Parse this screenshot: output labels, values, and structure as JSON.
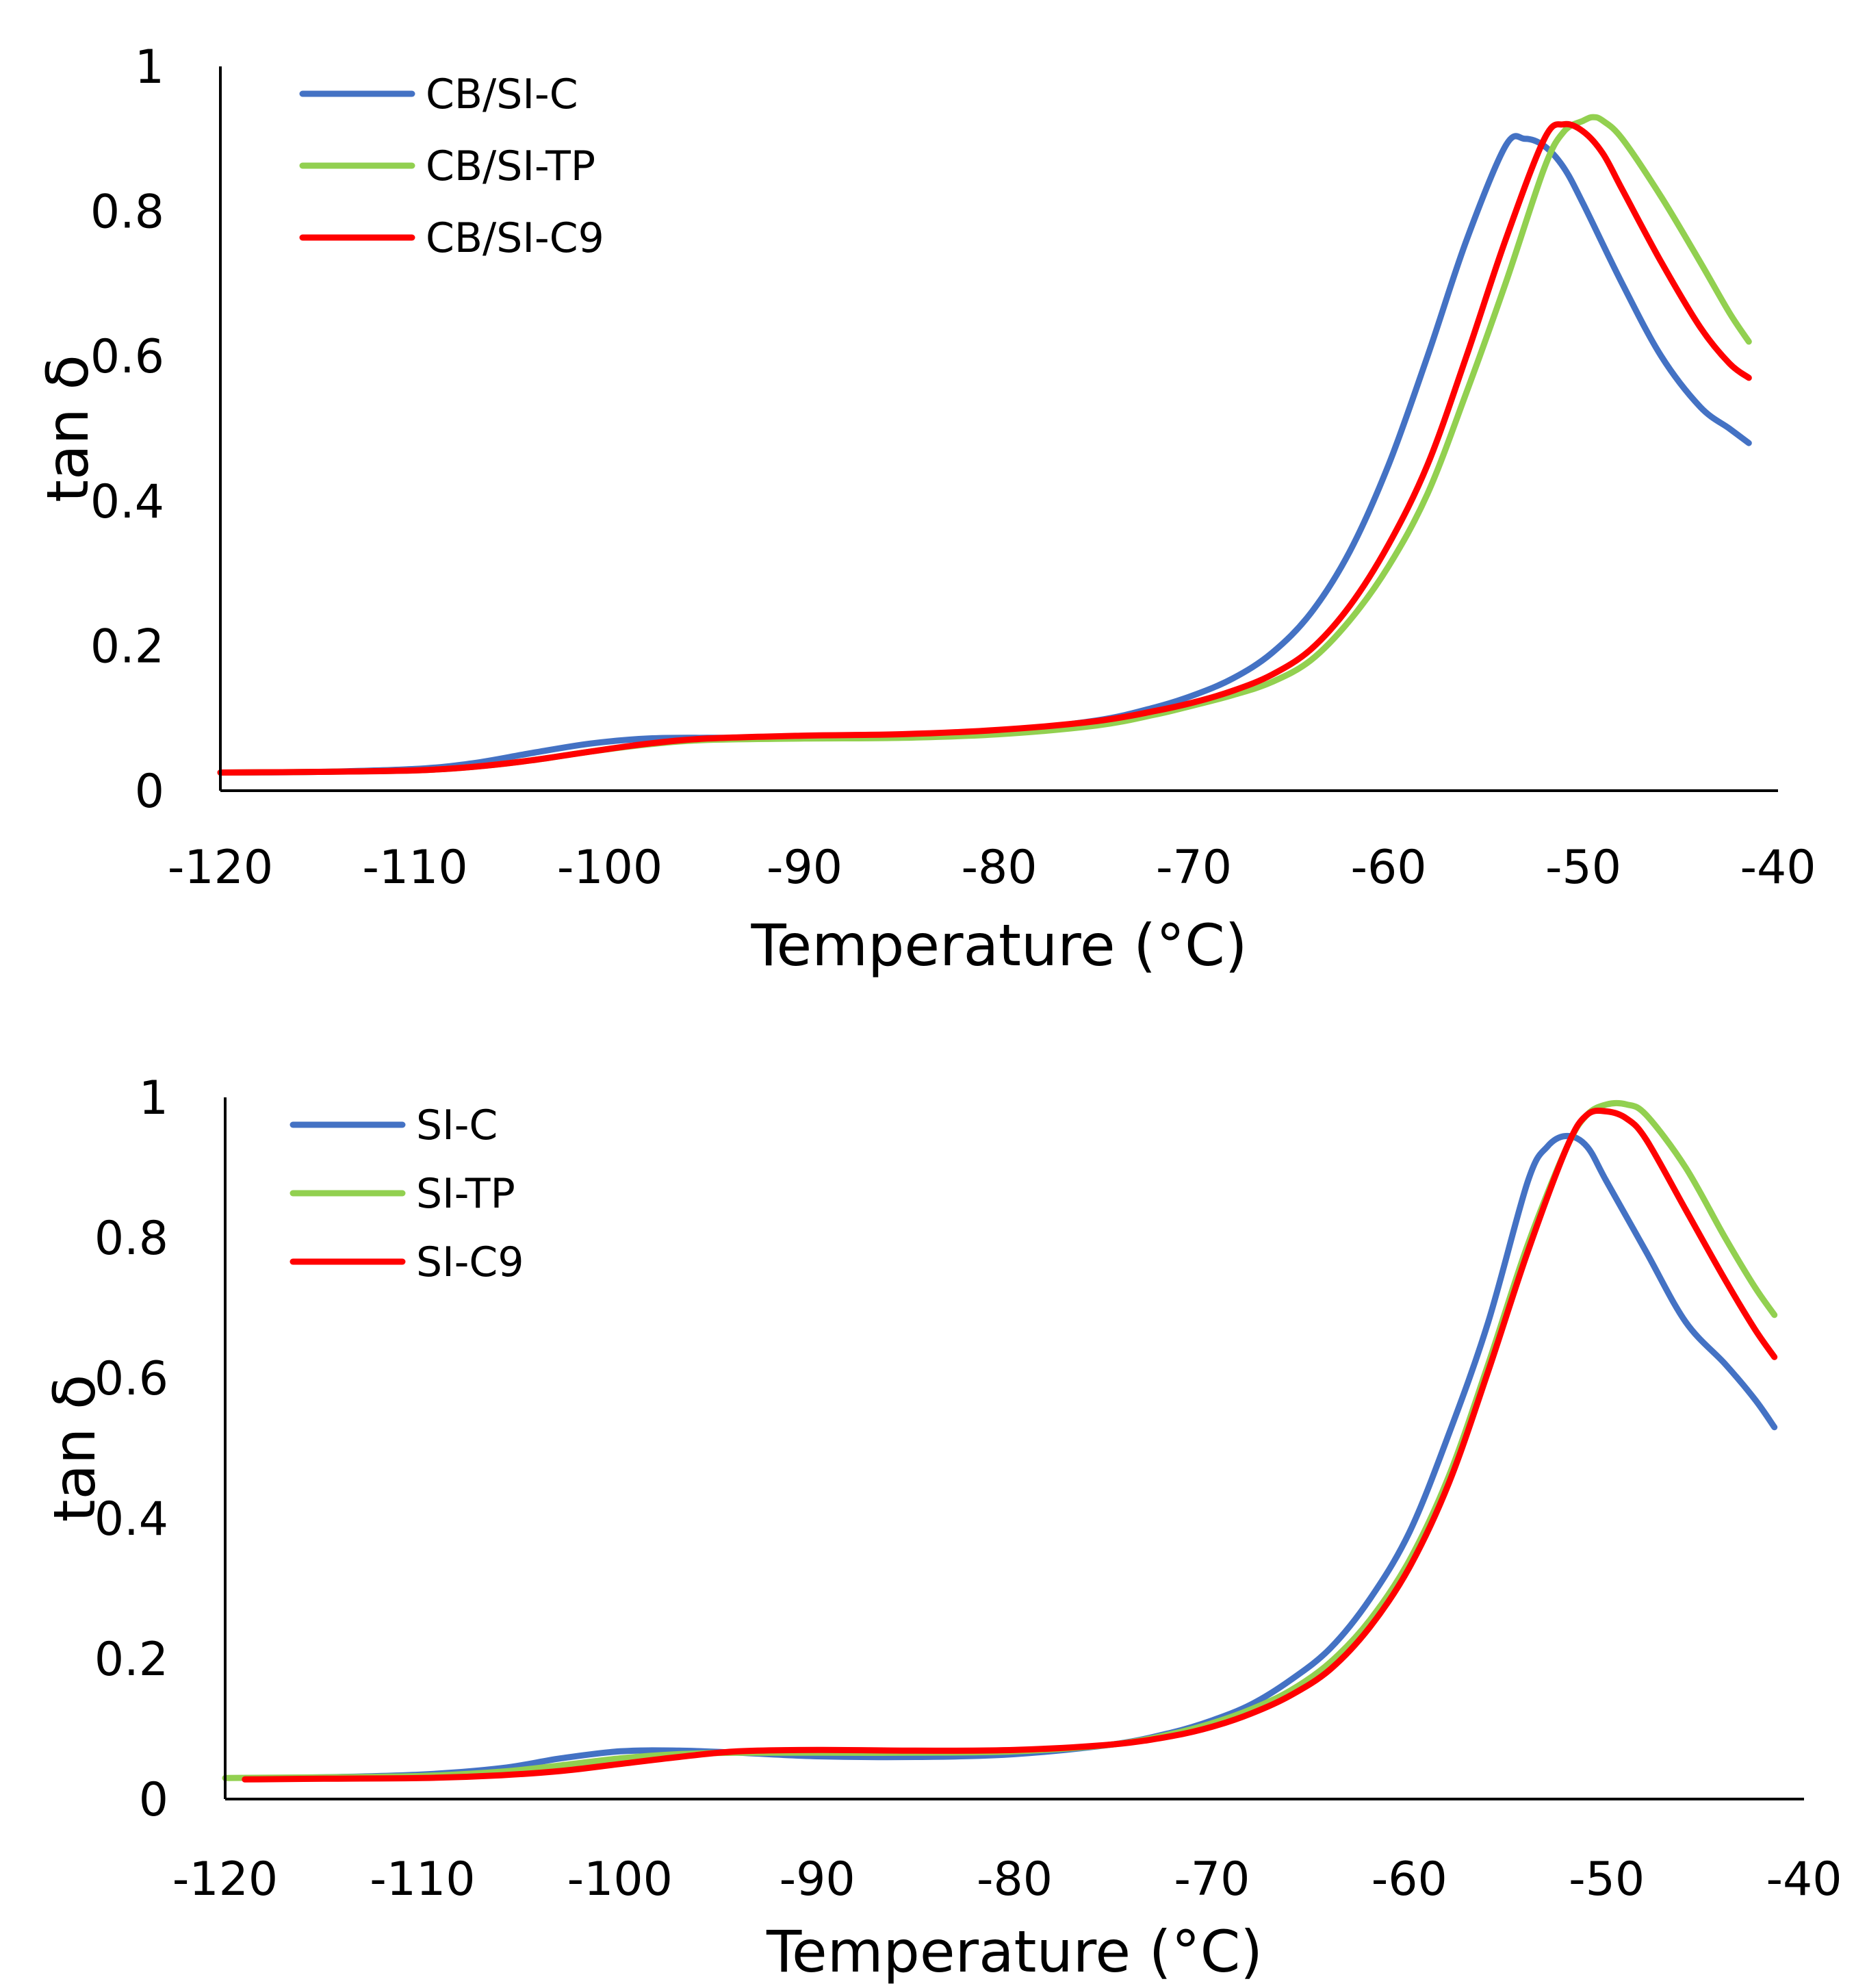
{
  "chart_data": [
    {
      "type": "line",
      "title": "",
      "xlabel": "Temperature (°C)",
      "ylabel": "tan δ",
      "xlim": [
        -120,
        -40
      ],
      "ylim": [
        0,
        1
      ],
      "xticks": [
        "-120",
        "-110",
        "-100",
        "-90",
        "-80",
        "-70",
        "-60",
        "-50",
        "-40"
      ],
      "yticks": [
        "0",
        "0.2",
        "0.4",
        "0.6",
        "0.8",
        "1"
      ],
      "grid": false,
      "legend_position": "top-left",
      "series": [
        {
          "name": "CB/SI-C",
          "color": "#4472C4",
          "x": [
            -120,
            -115,
            -110,
            -107,
            -104,
            -101,
            -98,
            -95,
            -90,
            -85,
            -80,
            -75,
            -72,
            -70,
            -68,
            -66,
            -64,
            -62,
            -60,
            -58,
            -56,
            -54,
            -53,
            -52,
            -51,
            -50,
            -48,
            -46,
            -44,
            -42.5,
            -41.5
          ],
          "y": [
            0.025,
            0.026,
            0.03,
            0.038,
            0.052,
            0.065,
            0.072,
            0.073,
            0.073,
            0.075,
            0.082,
            0.097,
            0.115,
            0.132,
            0.155,
            0.19,
            0.245,
            0.33,
            0.45,
            0.6,
            0.76,
            0.89,
            0.9,
            0.89,
            0.86,
            0.81,
            0.7,
            0.6,
            0.53,
            0.5,
            0.48
          ]
        },
        {
          "name": "CB/SI-TP",
          "color": "#92D050",
          "x": [
            -120,
            -115,
            -110,
            -107,
            -104,
            -101,
            -98,
            -95,
            -90,
            -85,
            -80,
            -75,
            -72,
            -70,
            -68,
            -66,
            -64,
            -62,
            -60,
            -58,
            -56,
            -54,
            -52,
            -51,
            -50,
            -49.5,
            -49,
            -48,
            -46,
            -44,
            -42.5,
            -41.5
          ],
          "y": [
            0.025,
            0.026,
            0.028,
            0.033,
            0.042,
            0.054,
            0.064,
            0.07,
            0.072,
            0.073,
            0.078,
            0.09,
            0.105,
            0.118,
            0.132,
            0.15,
            0.18,
            0.235,
            0.31,
            0.41,
            0.55,
            0.7,
            0.86,
            0.91,
            0.925,
            0.93,
            0.925,
            0.9,
            0.82,
            0.73,
            0.66,
            0.62
          ]
        },
        {
          "name": "CB/SI-C9",
          "color": "#FF0000",
          "x": [
            -120,
            -115,
            -110,
            -107,
            -104,
            -101,
            -98,
            -95,
            -90,
            -85,
            -80,
            -75,
            -72,
            -70,
            -68,
            -66,
            -64,
            -62,
            -60,
            -58,
            -56,
            -54,
            -52,
            -51,
            -50,
            -49,
            -48,
            -46,
            -44,
            -42.5,
            -41.5
          ],
          "y": [
            0.025,
            0.026,
            0.028,
            0.033,
            0.042,
            0.054,
            0.065,
            0.072,
            0.076,
            0.078,
            0.084,
            0.096,
            0.11,
            0.122,
            0.138,
            0.16,
            0.195,
            0.255,
            0.34,
            0.45,
            0.6,
            0.76,
            0.9,
            0.92,
            0.91,
            0.88,
            0.83,
            0.73,
            0.64,
            0.59,
            0.57
          ]
        }
      ]
    },
    {
      "type": "line",
      "title": "",
      "xlabel": "Temperature (°C)",
      "ylabel": "tan δ",
      "xlim": [
        -120,
        -40
      ],
      "ylim": [
        0,
        1
      ],
      "xticks": [
        "-120",
        "-110",
        "-100",
        "-90",
        "-80",
        "-70",
        "-60",
        "-50",
        "-40"
      ],
      "yticks": [
        "0",
        "0.2",
        "0.4",
        "0.6",
        "0.8",
        "1"
      ],
      "grid": false,
      "legend_position": "top-left",
      "series": [
        {
          "name": "SI-C",
          "color": "#4472C4",
          "x": [
            -119,
            -115,
            -110,
            -106,
            -103,
            -100,
            -97,
            -94,
            -90,
            -85,
            -80,
            -75,
            -72,
            -70,
            -68,
            -66,
            -64,
            -62,
            -60,
            -58,
            -56,
            -54,
            -53,
            -52,
            -51,
            -50,
            -48,
            -46,
            -44,
            -42.5,
            -41.5
          ],
          "y": [
            0.03,
            0.031,
            0.035,
            0.044,
            0.058,
            0.068,
            0.069,
            0.066,
            0.061,
            0.06,
            0.064,
            0.078,
            0.095,
            0.112,
            0.135,
            0.17,
            0.215,
            0.285,
            0.38,
            0.52,
            0.68,
            0.88,
            0.93,
            0.945,
            0.93,
            0.88,
            0.78,
            0.68,
            0.62,
            0.57,
            0.53
          ]
        },
        {
          "name": "SI-TP",
          "color": "#92D050",
          "x": [
            -120,
            -115,
            -110,
            -106,
            -103,
            -100,
            -97,
            -94,
            -90,
            -85,
            -80,
            -75,
            -72,
            -70,
            -68,
            -66,
            -64,
            -62,
            -60,
            -58,
            -56,
            -54,
            -52,
            -51,
            -50,
            -49,
            -48,
            -46,
            -44,
            -42.5,
            -41.5
          ],
          "y": [
            0.03,
            0.031,
            0.033,
            0.039,
            0.048,
            0.058,
            0.064,
            0.066,
            0.066,
            0.066,
            0.068,
            0.078,
            0.093,
            0.108,
            0.128,
            0.155,
            0.195,
            0.255,
            0.34,
            0.46,
            0.62,
            0.79,
            0.93,
            0.975,
            0.99,
            0.99,
            0.975,
            0.9,
            0.8,
            0.73,
            0.69
          ]
        },
        {
          "name": "SI-C9",
          "color": "#FF0000",
          "x": [
            -119,
            -115,
            -110,
            -106,
            -103,
            -100,
            -97,
            -94,
            -90,
            -85,
            -80,
            -75,
            -72,
            -70,
            -68,
            -66,
            -64,
            -62,
            -60,
            -58,
            -56,
            -54,
            -52,
            -51,
            -50,
            -49,
            -48,
            -46,
            -44,
            -42.5,
            -41.5
          ],
          "y": [
            0.028,
            0.029,
            0.03,
            0.034,
            0.04,
            0.05,
            0.06,
            0.068,
            0.07,
            0.069,
            0.07,
            0.078,
            0.09,
            0.103,
            0.122,
            0.148,
            0.185,
            0.245,
            0.33,
            0.45,
            0.61,
            0.78,
            0.93,
            0.975,
            0.98,
            0.97,
            0.94,
            0.84,
            0.74,
            0.67,
            0.63
          ]
        }
      ]
    }
  ]
}
